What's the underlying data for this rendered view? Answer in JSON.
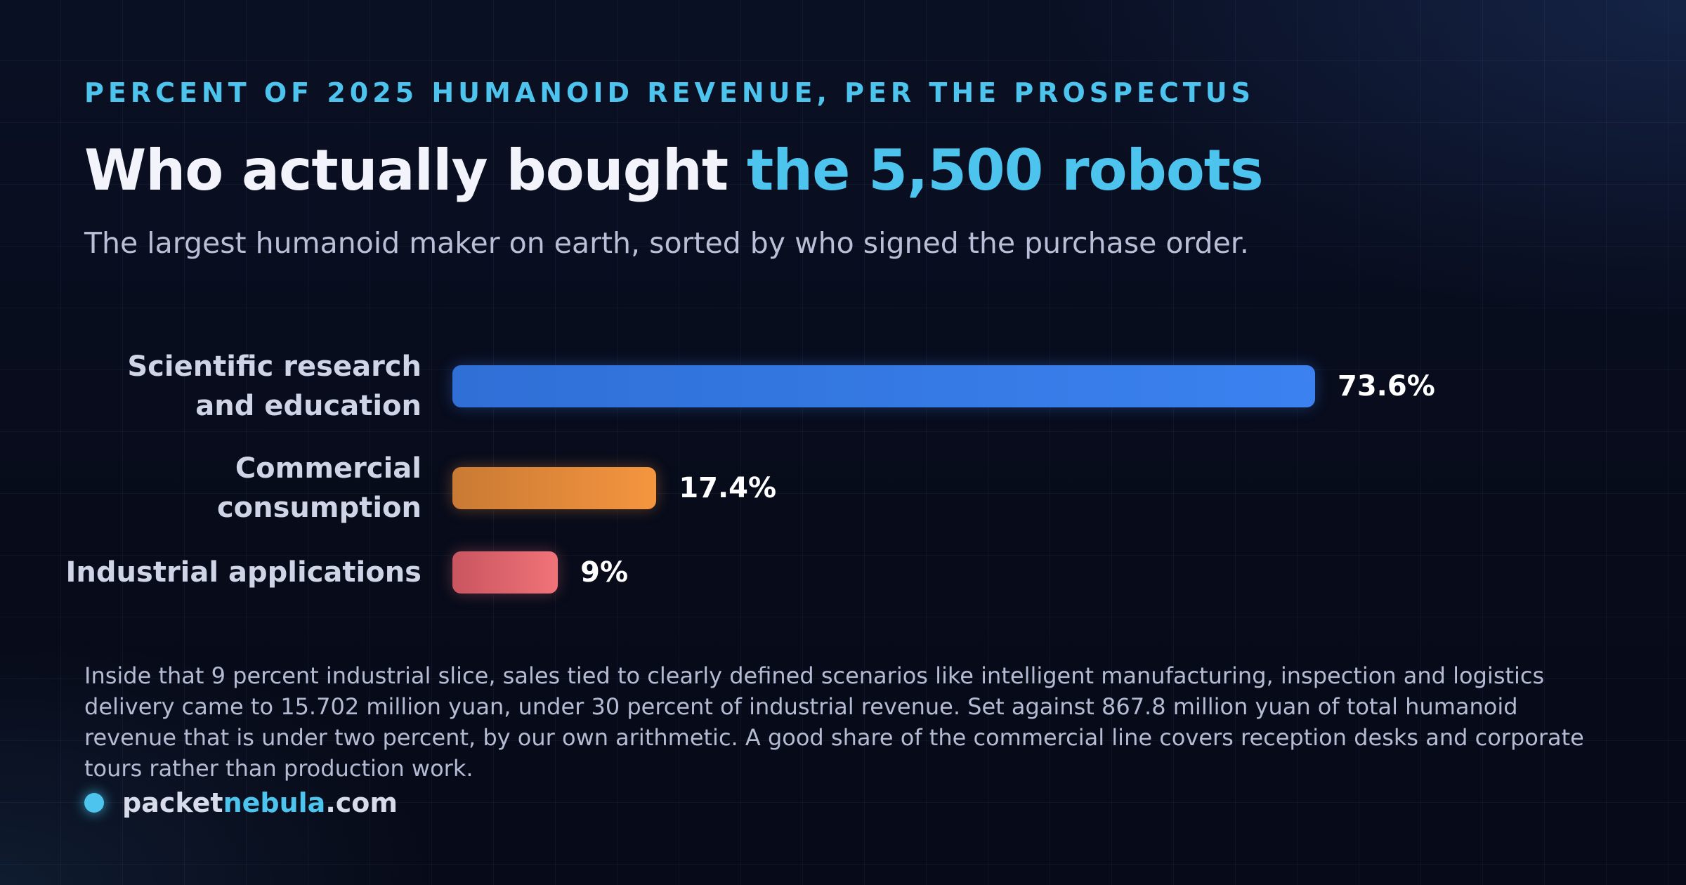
{
  "header": {
    "kicker": "PERCENT OF 2025 HUMANOID REVENUE, PER THE PROSPECTUS",
    "title_main": "Who actually bought ",
    "title_accent": "the 5,500 robots",
    "subtitle": "The largest humanoid maker on earth, sorted by who signed the purchase order."
  },
  "chart_data": {
    "type": "bar",
    "orientation": "horizontal",
    "title": "Who actually bought the 5,500 robots",
    "subtitle": "The largest humanoid maker on earth, sorted by who signed the purchase order.",
    "categories": [
      [
        "Scientific research",
        "and education"
      ],
      [
        "Commercial",
        "consumption"
      ],
      [
        "Industrial applications"
      ]
    ],
    "values": [
      73.6,
      17.4,
      9
    ],
    "value_labels": [
      "73.6%",
      "17.4%",
      "9%"
    ],
    "unit": "%",
    "xlim": [
      0,
      100
    ],
    "grid": false,
    "legend": "none"
  },
  "colors": {
    "accent": "#4cc4ee",
    "bars": [
      {
        "from": "#2f6fd6",
        "to": "#3b82f0"
      },
      {
        "from": "#c97a34",
        "to": "#f5953f"
      },
      {
        "from": "#c95560",
        "to": "#f07378"
      }
    ]
  },
  "footnote": "Inside that 9 percent industrial slice, sales tied to clearly defined scenarios like intelligent manufacturing, inspection and logistics delivery came to 15.702 million yuan, under 30 percent of industrial revenue. Set against 867.8 million yuan of total humanoid revenue that is under two percent, by our own arithmetic. A good share of the commercial line covers reception desks and corporate tours rather than production work.",
  "brand": {
    "part1": "packet",
    "part2": "nebula",
    "part3": ".com"
  }
}
